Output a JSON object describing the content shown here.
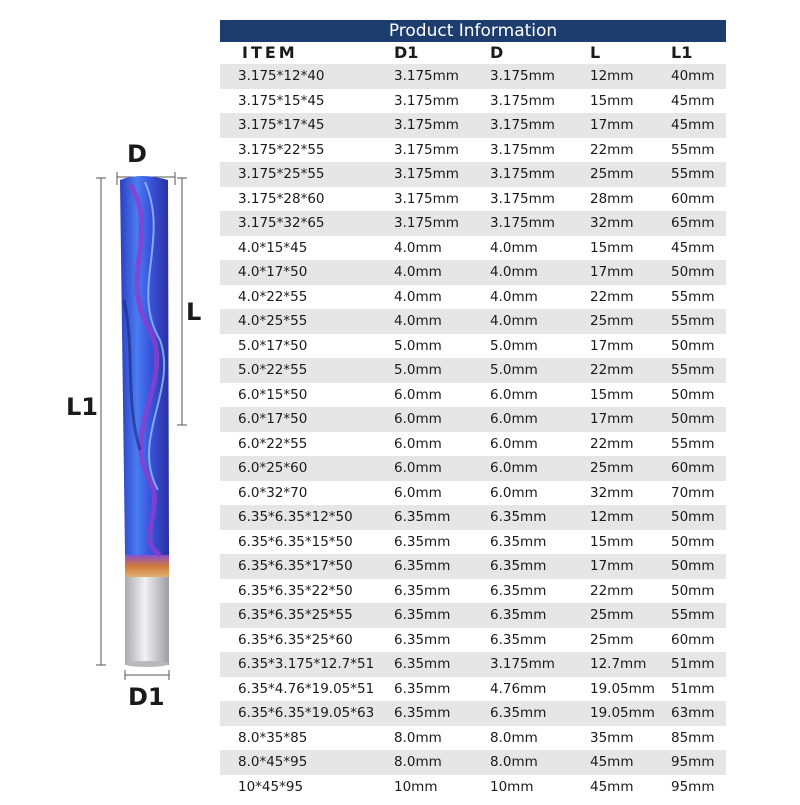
{
  "figure": {
    "label_d": "D",
    "label_l": "L",
    "label_l1": "L1",
    "label_d1": "D1",
    "colors": {
      "blade_blue": "#3a4fd8",
      "blade_purple": "#8a3fd0",
      "shank": "#cfcfd3",
      "band": "#d07a3a"
    }
  },
  "table": {
    "title": "Product Information",
    "title_bg": "#1d3d6e",
    "headers": [
      "ITEM",
      "D1",
      "D",
      "L",
      "L1"
    ],
    "rows": [
      [
        "3.175*12*40",
        "3.175mm",
        "3.175mm",
        "12mm",
        "40mm"
      ],
      [
        "3.175*15*45",
        "3.175mm",
        "3.175mm",
        "15mm",
        "45mm"
      ],
      [
        "3.175*17*45",
        "3.175mm",
        "3.175mm",
        "17mm",
        "45mm"
      ],
      [
        "3.175*22*55",
        "3.175mm",
        "3.175mm",
        "22mm",
        "55mm"
      ],
      [
        "3.175*25*55",
        "3.175mm",
        "3.175mm",
        "25mm",
        "55mm"
      ],
      [
        "3.175*28*60",
        "3.175mm",
        "3.175mm",
        "28mm",
        "60mm"
      ],
      [
        "3.175*32*65",
        "3.175mm",
        "3.175mm",
        "32mm",
        "65mm"
      ],
      [
        "4.0*15*45",
        "4.0mm",
        "4.0mm",
        "15mm",
        "45mm"
      ],
      [
        "4.0*17*50",
        "4.0mm",
        "4.0mm",
        "17mm",
        "50mm"
      ],
      [
        "4.0*22*55",
        "4.0mm",
        "4.0mm",
        "22mm",
        "55mm"
      ],
      [
        "4.0*25*55",
        "4.0mm",
        "4.0mm",
        "25mm",
        "55mm"
      ],
      [
        "5.0*17*50",
        "5.0mm",
        "5.0mm",
        "17mm",
        "50mm"
      ],
      [
        "5.0*22*55",
        "5.0mm",
        "5.0mm",
        "22mm",
        "55mm"
      ],
      [
        "6.0*15*50",
        "6.0mm",
        "6.0mm",
        "15mm",
        "50mm"
      ],
      [
        "6.0*17*50",
        "6.0mm",
        "6.0mm",
        "17mm",
        "50mm"
      ],
      [
        "6.0*22*55",
        "6.0mm",
        "6.0mm",
        "22mm",
        "55mm"
      ],
      [
        "6.0*25*60",
        "6.0mm",
        "6.0mm",
        "25mm",
        "60mm"
      ],
      [
        "6.0*32*70",
        "6.0mm",
        "6.0mm",
        "32mm",
        "70mm"
      ],
      [
        "6.35*6.35*12*50",
        "6.35mm",
        "6.35mm",
        "12mm",
        "50mm"
      ],
      [
        "6.35*6.35*15*50",
        "6.35mm",
        "6.35mm",
        "15mm",
        "50mm"
      ],
      [
        "6.35*6.35*17*50",
        "6.35mm",
        "6.35mm",
        "17mm",
        "50mm"
      ],
      [
        "6.35*6.35*22*50",
        "6.35mm",
        "6.35mm",
        "22mm",
        "50mm"
      ],
      [
        "6.35*6.35*25*55",
        "6.35mm",
        "6.35mm",
        "25mm",
        "55mm"
      ],
      [
        "6.35*6.35*25*60",
        "6.35mm",
        "6.35mm",
        "25mm",
        "60mm"
      ],
      [
        "6.35*3.175*12.7*51",
        "6.35mm",
        "3.175mm",
        "12.7mm",
        "51mm"
      ],
      [
        "6.35*4.76*19.05*51",
        "6.35mm",
        "4.76mm",
        "19.05mm",
        "51mm"
      ],
      [
        "6.35*6.35*19.05*63",
        "6.35mm",
        "6.35mm",
        "19.05mm",
        "63mm"
      ],
      [
        "8.0*35*85",
        "8.0mm",
        "8.0mm",
        "35mm",
        "85mm"
      ],
      [
        "8.0*45*95",
        "8.0mm",
        "8.0mm",
        "45mm",
        "95mm"
      ],
      [
        "10*45*95",
        "10mm",
        "10mm",
        "45mm",
        "95mm"
      ]
    ]
  }
}
